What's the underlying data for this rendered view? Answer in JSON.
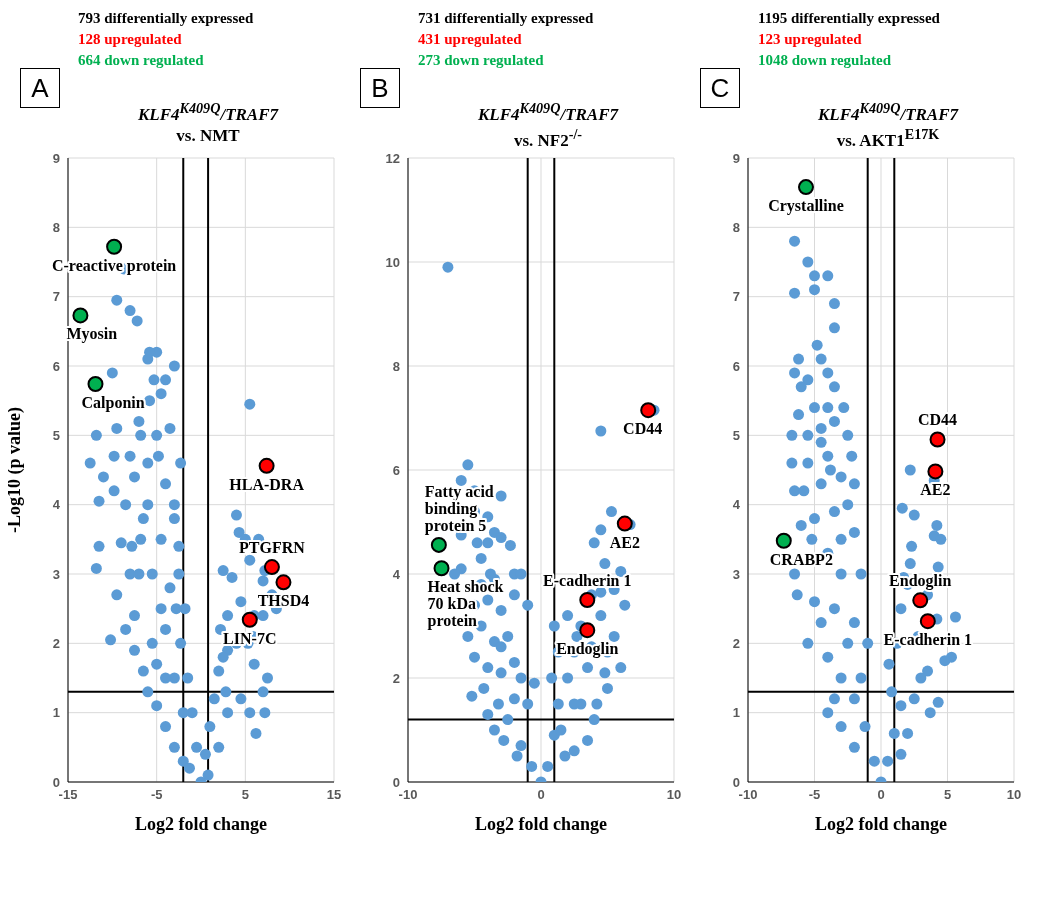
{
  "chart_data": [
    {
      "type": "scatter",
      "title": "KLF4$^{K409Q}$/TRAF7",
      "subtitle": "vs. NMT",
      "xlabel": "Log2 fold change",
      "ylabel": "-Log10 (p value)",
      "marker": "circle",
      "grid": true,
      "xlim": [
        -15,
        15
      ],
      "xticks": [
        -15,
        -5,
        5,
        15
      ],
      "ylim": [
        0,
        9
      ],
      "yticks": [
        0,
        1,
        2,
        3,
        4,
        5,
        6,
        7,
        8,
        9
      ],
      "ref_lines": [
        {
          "axis": "x",
          "value": -2,
          "color": "#000000"
        },
        {
          "axis": "x",
          "value": 0.8,
          "color": "#000000"
        },
        {
          "axis": "y",
          "value": 1.3,
          "color": "#000000"
        }
      ],
      "annotations": [
        "793 differentially expressed",
        "128 upregulated",
        "664 down regulated",
        "A",
        {
          "text": "C-reactive protein",
          "x": -9.8,
          "y": 7.72
        },
        {
          "text": "Myosin",
          "x": -13.6,
          "y": 6.73
        },
        {
          "text": "Calponin",
          "x": -11.9,
          "y": 5.74
        },
        {
          "text": "HLA-DRA",
          "x": 7.4,
          "y": 4.56
        },
        {
          "text": "PTGFRN",
          "x": 8.0,
          "y": 3.1
        },
        {
          "text": "THSD4",
          "x": 9.3,
          "y": 2.88
        },
        {
          "text": "LIN-7C",
          "x": 5.5,
          "y": 2.34
        }
      ],
      "series": [
        {
          "color": "#5b9bd5",
          "x": [
            5.5,
            -8.7,
            -9.5,
            -8,
            -7.2,
            -5,
            -3,
            -5.3,
            -10,
            -6,
            -4.5,
            -7,
            -9.5,
            -11.8,
            -12.5,
            -11,
            -11.5,
            -3.5,
            -9.8,
            -8,
            -2.3,
            -6,
            -9.8,
            -11.5,
            -11.8,
            -9.5,
            -10.2,
            -9,
            -8,
            -8.5,
            -7.5,
            -7.5,
            -6.8,
            -6,
            -5,
            -4,
            -3,
            -2.5,
            -2.3,
            -1.5,
            -1,
            -0.5,
            0,
            0.5,
            1,
            1.5,
            2,
            3,
            4,
            6,
            7,
            6.2,
            5.5,
            4.5,
            3,
            2,
            -2,
            -3,
            -4,
            -5,
            -6,
            -6.5,
            -5.5,
            -4.5,
            -3.5,
            -5.5,
            -7,
            -6.5,
            -4.5,
            -4,
            -3,
            -2,
            3,
            2.2,
            2.5,
            3.5,
            4,
            4.3,
            5,
            6.5,
            7,
            5.5,
            4.5,
            6,
            7,
            7.2,
            8,
            7.5,
            5.8,
            5.3,
            2.8,
            -1.8,
            -2.5,
            -3,
            -7.5,
            -6.8,
            -5.8,
            -4,
            -5.8,
            -4.8,
            -8.5,
            -7.8,
            -2.8,
            -4,
            -5,
            -1.3,
            0.8,
            2.5,
            7.2,
            7.5,
            8.5
          ],
          "values": [
            5.45,
            7.4,
            6.95,
            6.8,
            6.65,
            6.2,
            6.0,
            5.8,
            5.9,
            6.1,
            5.6,
            5.2,
            5.1,
            5.0,
            4.6,
            4.4,
            4.05,
            5.1,
            4.7,
            4.7,
            4.6,
            4.6,
            4.2,
            3.4,
            3.08,
            2.7,
            2.05,
            3.45,
            3.0,
            2.2,
            1.9,
            2.4,
            3.5,
            4.0,
            5.0,
            4.3,
            3.8,
            3.0,
            2.0,
            1.5,
            1.0,
            0.5,
            0,
            0.4,
            0.8,
            1.2,
            1.6,
            1.9,
            2.0,
            1.7,
            1.3,
            0.7,
            1.0,
            1.2,
            1.0,
            0.5,
            0.3,
            0.5,
            0.8,
            1.1,
            1.3,
            1.6,
            2.0,
            2.5,
            2.8,
            3.0,
            3.0,
            3.8,
            3.5,
            2.2,
            1.5,
            1.0,
            2.4,
            2.2,
            3.05,
            2.95,
            3.85,
            3.6,
            3.5,
            3.5,
            2.9,
            3.2,
            2.6,
            2.4,
            2.4,
            3.05,
            2.7,
            null,
            2.1,
            2.0,
            1.3,
            2.5,
            3.4,
            4.0,
            4.4,
            5.0,
            5.5,
            5.8,
            6.2,
            4.7,
            4.0,
            3.4,
            2.5,
            1.5,
            1.7,
            0.2,
            0.1,
            1.8,
            1.0,
            1.5,
            2.5
          ]
        },
        {
          "color": "#ff0000",
          "x": [
            7.4,
            8.0,
            9.3,
            5.5
          ],
          "values": [
            4.56,
            3.1,
            2.88,
            2.34
          ]
        },
        {
          "color": "#00b050",
          "x": [
            -9.8,
            -13.6,
            -11.9
          ],
          "values": [
            7.72,
            6.73,
            5.74
          ]
        }
      ]
    },
    {
      "type": "scatter",
      "title": "KLF4$^{K409Q}$/TRAF7",
      "subtitle": "vs. NF2$^{-/-}$",
      "xlabel": "Log2 fold change",
      "marker": "circle",
      "grid": true,
      "xlim": [
        -10,
        10
      ],
      "xticks": [
        -10,
        0,
        10
      ],
      "ylim": [
        0,
        12
      ],
      "yticks": [
        0,
        2,
        4,
        6,
        8,
        10,
        12
      ],
      "ref_lines": [
        {
          "axis": "x",
          "value": -1,
          "color": "#000000"
        },
        {
          "axis": "x",
          "value": 1,
          "color": "#000000"
        },
        {
          "axis": "y",
          "value": 1.2,
          "color": "#000000"
        }
      ],
      "annotations": [
        "731 differentially expressed",
        "431 upregulated",
        "273 down regulated",
        "B",
        {
          "text": "CD44",
          "x": 8.06,
          "y": 7.15
        },
        {
          "text": "AE2",
          "x": 6.3,
          "y": 4.97
        },
        {
          "text": "E-cadherin 1",
          "x": 3.48,
          "y": 3.5
        },
        {
          "text": "Endoglin",
          "x": 3.48,
          "y": 2.92
        },
        {
          "text": "Fatty acid\nbinding\nprotein 5",
          "x": -7.68,
          "y": 4.56
        },
        {
          "text": "Heat shock\n70 kDa\nprotein",
          "x": -7.48,
          "y": 4.11
        }
      ],
      "series": [
        {
          "color": "#5b9bd5",
          "x": [
            -7,
            -5.5,
            -6,
            -5,
            -3,
            -5,
            -4,
            -3.5,
            -6,
            -4,
            -3,
            -2.3,
            -4.5,
            -3.8,
            -6,
            -6.5,
            -2,
            -1.5,
            -5,
            -4,
            -3,
            -1,
            -2,
            -4.5,
            -3.5,
            -5,
            -4,
            -3,
            -2,
            -5.2,
            -1.5,
            -4.3,
            -3.2,
            -2.5,
            -1.5,
            -0.7,
            0,
            0.5,
            1.0,
            1.3,
            0.8,
            1.3,
            1.0,
            2,
            3,
            2.5,
            2,
            3,
            4,
            3.5,
            2.5,
            1.8,
            -1.8,
            -2.8,
            -3.5,
            -4.0,
            4.5,
            5.3,
            4.5,
            4,
            4.8,
            6,
            5.5,
            6.3,
            4.5,
            5.5,
            6,
            4.8,
            5,
            4.2,
            3.5,
            2.7,
            8.5,
            6.7,
            3.8,
            4.5,
            -0.5,
            -1,
            -2.5,
            -3.5,
            -4.5,
            -3,
            -2,
            1.5,
            2.5,
            3.8,
            5,
            -5.5,
            -4.8
          ],
          "values": [
            9.9,
            6.1,
            5.8,
            5.6,
            5.5,
            5.2,
            5.1,
            4.8,
            4.75,
            4.6,
            4.7,
            4.55,
            4.3,
            4.0,
            4.1,
            4.0,
            4.0,
            4.0,
            3.4,
            3.5,
            3.3,
            3.4,
            3.6,
            3.0,
            2.7,
            2.4,
            2.2,
            2.1,
            2.3,
            1.65,
            2.0,
            1.8,
            1.5,
            1.2,
            0.7,
            0.3,
            0,
            0.3,
            0.9,
            1.5,
            2.0,
            2.5,
            3.0,
            3.2,
            3.0,
            2.5,
            2.0,
            1.5,
            1.2,
            0.8,
            0.6,
            0.5,
            0.5,
            0.8,
            1.0,
            1.3,
            6.75,
            5.2,
            4.85,
            4.6,
            4.2,
            4.05,
            3.7,
            3.4,
            3.2,
            2.8,
            2.2,
            2.1,
            1.8,
            1.5,
            2.2,
            2.8,
            7.15,
            4.95,
            3.6,
            3.65,
            1.9,
            1.5,
            2.8,
            3.9,
            3.8,
            2.6,
            1.6,
            1.0,
            1.5,
            2.6,
            2.5,
            2.8,
            4.6
          ]
        },
        {
          "color": "#ff0000",
          "x": [
            8.06,
            6.3,
            3.48,
            3.48
          ],
          "values": [
            7.15,
            4.97,
            3.5,
            2.92
          ]
        },
        {
          "color": "#00b050",
          "x": [
            -7.68,
            -7.48
          ],
          "values": [
            4.56,
            4.11
          ]
        }
      ]
    },
    {
      "type": "scatter",
      "title": "KLF4$^{K409Q}$/TRAF7",
      "subtitle": "vs. AKT1$^{E17K}$",
      "xlabel": "Log2 fold change",
      "marker": "circle",
      "grid": true,
      "xlim": [
        -10,
        10
      ],
      "xticks": [
        -10,
        -5,
        0,
        5,
        10
      ],
      "ylim": [
        0,
        9
      ],
      "yticks": [
        0,
        1,
        2,
        3,
        4,
        5,
        6,
        7,
        8,
        9
      ],
      "ref_lines": [
        {
          "axis": "x",
          "value": -1,
          "color": "#000000"
        },
        {
          "axis": "x",
          "value": 1,
          "color": "#000000"
        },
        {
          "axis": "y",
          "value": 1.3,
          "color": "#000000"
        }
      ],
      "annotations": [
        "1195 differentially expressed",
        "123 upregulated",
        "1048 down regulated",
        "C",
        {
          "text": "Crystalline",
          "x": -5.64,
          "y": 8.58
        },
        {
          "text": "CRABP2",
          "x": -7.31,
          "y": 3.48
        },
        {
          "text": "CD44",
          "x": 4.25,
          "y": 4.94
        },
        {
          "text": "AE2",
          "x": 4.09,
          "y": 4.48
        },
        {
          "text": "Endoglin",
          "x": 2.95,
          "y": 2.62
        },
        {
          "text": "E-cadherin 1",
          "x": 3.52,
          "y": 2.32
        }
      ],
      "series": [
        {
          "color": "#5b9bd5",
          "x": [
            -6.5,
            -5.5,
            -5,
            -4,
            -5,
            -6.5,
            -3.5,
            -3.5,
            -4.8,
            -6.2,
            -6.5,
            -4.5,
            -5.5,
            -4,
            -3.5,
            -6,
            -2.8,
            -6.2,
            -5,
            -4,
            -6.7,
            -5.5,
            -4.5,
            -3.5,
            -2.5,
            -2.2,
            -6.7,
            -5.5,
            -4,
            -6.5,
            -5.8,
            -4.5,
            -3,
            -2,
            -6,
            -5,
            -3.5,
            -2,
            -1.5,
            -6.5,
            -4,
            -3,
            -6.3,
            -5,
            -3.5,
            -2,
            -1,
            -5.5,
            -4,
            -3,
            -2,
            -1.2,
            -0.5,
            0,
            0.5,
            1,
            1.5,
            0.8,
            0.6,
            1.2,
            1.5,
            2,
            1.7,
            2.3,
            2.2,
            1.6,
            2.5,
            2.2,
            4,
            4.2,
            4,
            4.5,
            4.3,
            3.5,
            4.2,
            5.6,
            5.3,
            4.8,
            3.5,
            4.3,
            3.7,
            2.5,
            2,
            1.5,
            -2,
            -3,
            -4,
            -3.5,
            -2.5,
            -1.5,
            -4.5,
            -5.2,
            -3,
            -2.5,
            -4.5,
            -3.8,
            2.8,
            3
          ],
          "values": [
            7.8,
            7.5,
            7.3,
            7.3,
            7.1,
            7.05,
            6.9,
            6.55,
            6.3,
            6.1,
            5.9,
            6.1,
            5.8,
            5.9,
            5.7,
            5.7,
            5.4,
            5.3,
            5.4,
            5.4,
            5.0,
            5.0,
            5.1,
            5.2,
            5.0,
            4.7,
            4.6,
            4.6,
            4.7,
            4.2,
            4.2,
            4.3,
            4.4,
            4.3,
            3.7,
            3.8,
            3.9,
            3.6,
            3.0,
            3.0,
            3.3,
            3.0,
            2.7,
            2.6,
            2.5,
            2.3,
            2.0,
            2.0,
            1.8,
            1.5,
            1.2,
            0.8,
            0.3,
            0,
            0.3,
            0.7,
            1.1,
            1.3,
            1.7,
            2.0,
            2.5,
            2.85,
            2.95,
            3.4,
            3.15,
            3.95,
            3.85,
            4.5,
            4.35,
            3.7,
            3.55,
            3.5,
            3.1,
            2.7,
            2.35,
            2.38,
            1.8,
            1.75,
            1.6,
            1.15,
            1.0,
            1.2,
            0.7,
            0.4,
            0.5,
            0.8,
            1.0,
            1.2,
            2.0,
            1.5,
            2.3,
            3.5,
            3.5,
            4.0,
            4.9,
            4.5,
            2.1,
            1.5
          ]
        },
        {
          "color": "#ff0000",
          "x": [
            4.25,
            4.09,
            2.95,
            3.52
          ],
          "values": [
            4.94,
            4.48,
            2.62,
            2.32
          ]
        },
        {
          "color": "#00b050",
          "x": [
            -5.64,
            -7.31
          ],
          "values": [
            8.58,
            3.48
          ]
        }
      ]
    }
  ]
}
